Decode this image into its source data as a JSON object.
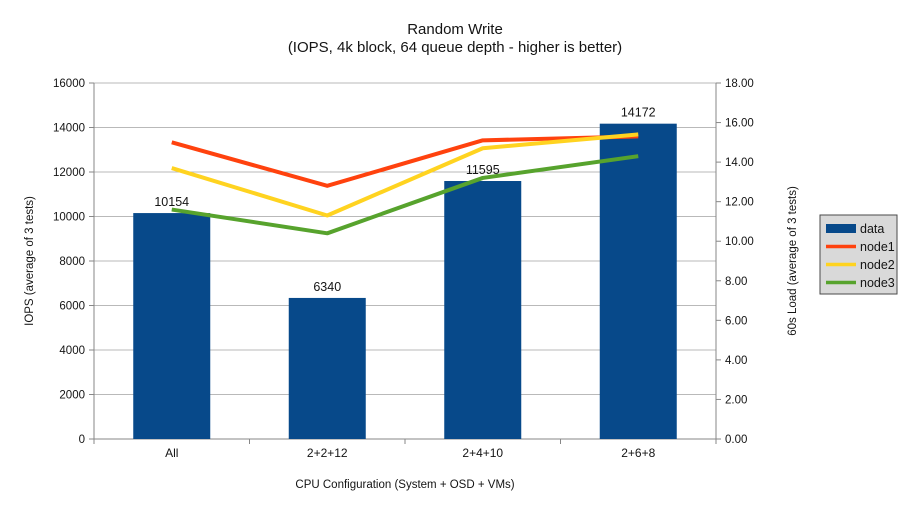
{
  "chart_data": {
    "type": "bar+line",
    "title": "Random Write",
    "subtitle": "(IOPS, 4k block, 64 queue depth - higher is better)",
    "categories": [
      "All",
      "2+2+12",
      "2+4+10",
      "2+6+8"
    ],
    "bar_series": {
      "name": "data",
      "values": [
        10154,
        6340,
        11595,
        14172
      ],
      "labels": [
        "10154",
        "6340",
        "11595",
        "14172"
      ],
      "color": "#07498A",
      "axis": "left"
    },
    "line_series": [
      {
        "name": "node1",
        "values": [
          15.0,
          12.8,
          15.1,
          15.3
        ],
        "color": "#FF420E",
        "axis": "right"
      },
      {
        "name": "node2",
        "values": [
          13.7,
          11.3,
          14.7,
          15.4
        ],
        "color": "#FFD320",
        "axis": "right"
      },
      {
        "name": "node3",
        "values": [
          11.6,
          10.4,
          13.2,
          14.3
        ],
        "color": "#57A32D",
        "axis": "right"
      }
    ],
    "left_axis": {
      "label": "IOPS (average of 3 tests)",
      "min": 0,
      "max": 16000,
      "step": 2000,
      "tick_labels": [
        "0",
        "2000",
        "4000",
        "6000",
        "8000",
        "10000",
        "12000",
        "14000",
        "16000"
      ]
    },
    "right_axis": {
      "label": "60s Load (average of 3 tests)",
      "min": 0,
      "max": 18,
      "step": 2,
      "tick_labels": [
        "0.00",
        "2.00",
        "4.00",
        "6.00",
        "8.00",
        "10.00",
        "12.00",
        "14.00",
        "16.00",
        "18.00"
      ]
    },
    "x_axis": {
      "label": "CPU Configuration (System + OSD + VMs)"
    },
    "legend": {
      "position": "right",
      "background": "#D9D9D9",
      "border": "#4A4A4A",
      "entries": [
        {
          "label": "data",
          "swatch": "box",
          "color": "#07498A"
        },
        {
          "label": "node1",
          "swatch": "line",
          "color": "#FF420E"
        },
        {
          "label": "node2",
          "swatch": "line",
          "color": "#FFD320"
        },
        {
          "label": "node3",
          "swatch": "line",
          "color": "#57A32D"
        }
      ]
    },
    "grid": "horizontal",
    "grid_color": "#B9B9B9",
    "axis_color": "#878787"
  }
}
